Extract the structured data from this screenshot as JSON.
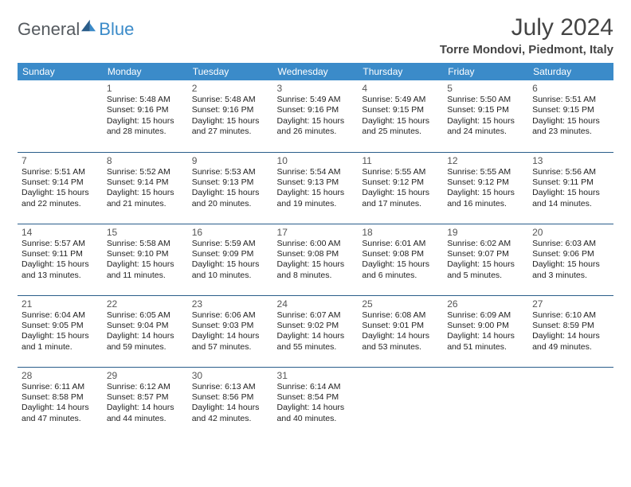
{
  "brand": {
    "part1": "General",
    "part2": "Blue"
  },
  "title": "July 2024",
  "location": "Torre Mondovi, Piedmont, Italy",
  "colors": {
    "header_bg": "#3b8bc9",
    "header_text": "#ffffff",
    "row_border": "#2a5d8a",
    "text": "#222222",
    "title_text": "#444444",
    "logo_gray": "#555a5f",
    "logo_blue": "#3b8bc9",
    "background": "#ffffff"
  },
  "weekday_labels": [
    "Sunday",
    "Monday",
    "Tuesday",
    "Wednesday",
    "Thursday",
    "Friday",
    "Saturday"
  ],
  "weeks": [
    [
      {
        "empty": true
      },
      {
        "day": "1",
        "sunrise": "Sunrise: 5:48 AM",
        "sunset": "Sunset: 9:16 PM",
        "daylight1": "Daylight: 15 hours",
        "daylight2": "and 28 minutes."
      },
      {
        "day": "2",
        "sunrise": "Sunrise: 5:48 AM",
        "sunset": "Sunset: 9:16 PM",
        "daylight1": "Daylight: 15 hours",
        "daylight2": "and 27 minutes."
      },
      {
        "day": "3",
        "sunrise": "Sunrise: 5:49 AM",
        "sunset": "Sunset: 9:16 PM",
        "daylight1": "Daylight: 15 hours",
        "daylight2": "and 26 minutes."
      },
      {
        "day": "4",
        "sunrise": "Sunrise: 5:49 AM",
        "sunset": "Sunset: 9:15 PM",
        "daylight1": "Daylight: 15 hours",
        "daylight2": "and 25 minutes."
      },
      {
        "day": "5",
        "sunrise": "Sunrise: 5:50 AM",
        "sunset": "Sunset: 9:15 PM",
        "daylight1": "Daylight: 15 hours",
        "daylight2": "and 24 minutes."
      },
      {
        "day": "6",
        "sunrise": "Sunrise: 5:51 AM",
        "sunset": "Sunset: 9:15 PM",
        "daylight1": "Daylight: 15 hours",
        "daylight2": "and 23 minutes."
      }
    ],
    [
      {
        "day": "7",
        "sunrise": "Sunrise: 5:51 AM",
        "sunset": "Sunset: 9:14 PM",
        "daylight1": "Daylight: 15 hours",
        "daylight2": "and 22 minutes."
      },
      {
        "day": "8",
        "sunrise": "Sunrise: 5:52 AM",
        "sunset": "Sunset: 9:14 PM",
        "daylight1": "Daylight: 15 hours",
        "daylight2": "and 21 minutes."
      },
      {
        "day": "9",
        "sunrise": "Sunrise: 5:53 AM",
        "sunset": "Sunset: 9:13 PM",
        "daylight1": "Daylight: 15 hours",
        "daylight2": "and 20 minutes."
      },
      {
        "day": "10",
        "sunrise": "Sunrise: 5:54 AM",
        "sunset": "Sunset: 9:13 PM",
        "daylight1": "Daylight: 15 hours",
        "daylight2": "and 19 minutes."
      },
      {
        "day": "11",
        "sunrise": "Sunrise: 5:55 AM",
        "sunset": "Sunset: 9:12 PM",
        "daylight1": "Daylight: 15 hours",
        "daylight2": "and 17 minutes."
      },
      {
        "day": "12",
        "sunrise": "Sunrise: 5:55 AM",
        "sunset": "Sunset: 9:12 PM",
        "daylight1": "Daylight: 15 hours",
        "daylight2": "and 16 minutes."
      },
      {
        "day": "13",
        "sunrise": "Sunrise: 5:56 AM",
        "sunset": "Sunset: 9:11 PM",
        "daylight1": "Daylight: 15 hours",
        "daylight2": "and 14 minutes."
      }
    ],
    [
      {
        "day": "14",
        "sunrise": "Sunrise: 5:57 AM",
        "sunset": "Sunset: 9:11 PM",
        "daylight1": "Daylight: 15 hours",
        "daylight2": "and 13 minutes."
      },
      {
        "day": "15",
        "sunrise": "Sunrise: 5:58 AM",
        "sunset": "Sunset: 9:10 PM",
        "daylight1": "Daylight: 15 hours",
        "daylight2": "and 11 minutes."
      },
      {
        "day": "16",
        "sunrise": "Sunrise: 5:59 AM",
        "sunset": "Sunset: 9:09 PM",
        "daylight1": "Daylight: 15 hours",
        "daylight2": "and 10 minutes."
      },
      {
        "day": "17",
        "sunrise": "Sunrise: 6:00 AM",
        "sunset": "Sunset: 9:08 PM",
        "daylight1": "Daylight: 15 hours",
        "daylight2": "and 8 minutes."
      },
      {
        "day": "18",
        "sunrise": "Sunrise: 6:01 AM",
        "sunset": "Sunset: 9:08 PM",
        "daylight1": "Daylight: 15 hours",
        "daylight2": "and 6 minutes."
      },
      {
        "day": "19",
        "sunrise": "Sunrise: 6:02 AM",
        "sunset": "Sunset: 9:07 PM",
        "daylight1": "Daylight: 15 hours",
        "daylight2": "and 5 minutes."
      },
      {
        "day": "20",
        "sunrise": "Sunrise: 6:03 AM",
        "sunset": "Sunset: 9:06 PM",
        "daylight1": "Daylight: 15 hours",
        "daylight2": "and 3 minutes."
      }
    ],
    [
      {
        "day": "21",
        "sunrise": "Sunrise: 6:04 AM",
        "sunset": "Sunset: 9:05 PM",
        "daylight1": "Daylight: 15 hours",
        "daylight2": "and 1 minute."
      },
      {
        "day": "22",
        "sunrise": "Sunrise: 6:05 AM",
        "sunset": "Sunset: 9:04 PM",
        "daylight1": "Daylight: 14 hours",
        "daylight2": "and 59 minutes."
      },
      {
        "day": "23",
        "sunrise": "Sunrise: 6:06 AM",
        "sunset": "Sunset: 9:03 PM",
        "daylight1": "Daylight: 14 hours",
        "daylight2": "and 57 minutes."
      },
      {
        "day": "24",
        "sunrise": "Sunrise: 6:07 AM",
        "sunset": "Sunset: 9:02 PM",
        "daylight1": "Daylight: 14 hours",
        "daylight2": "and 55 minutes."
      },
      {
        "day": "25",
        "sunrise": "Sunrise: 6:08 AM",
        "sunset": "Sunset: 9:01 PM",
        "daylight1": "Daylight: 14 hours",
        "daylight2": "and 53 minutes."
      },
      {
        "day": "26",
        "sunrise": "Sunrise: 6:09 AM",
        "sunset": "Sunset: 9:00 PM",
        "daylight1": "Daylight: 14 hours",
        "daylight2": "and 51 minutes."
      },
      {
        "day": "27",
        "sunrise": "Sunrise: 6:10 AM",
        "sunset": "Sunset: 8:59 PM",
        "daylight1": "Daylight: 14 hours",
        "daylight2": "and 49 minutes."
      }
    ],
    [
      {
        "day": "28",
        "sunrise": "Sunrise: 6:11 AM",
        "sunset": "Sunset: 8:58 PM",
        "daylight1": "Daylight: 14 hours",
        "daylight2": "and 47 minutes."
      },
      {
        "day": "29",
        "sunrise": "Sunrise: 6:12 AM",
        "sunset": "Sunset: 8:57 PM",
        "daylight1": "Daylight: 14 hours",
        "daylight2": "and 44 minutes."
      },
      {
        "day": "30",
        "sunrise": "Sunrise: 6:13 AM",
        "sunset": "Sunset: 8:56 PM",
        "daylight1": "Daylight: 14 hours",
        "daylight2": "and 42 minutes."
      },
      {
        "day": "31",
        "sunrise": "Sunrise: 6:14 AM",
        "sunset": "Sunset: 8:54 PM",
        "daylight1": "Daylight: 14 hours",
        "daylight2": "and 40 minutes."
      },
      {
        "empty": true
      },
      {
        "empty": true
      },
      {
        "empty": true
      }
    ]
  ]
}
